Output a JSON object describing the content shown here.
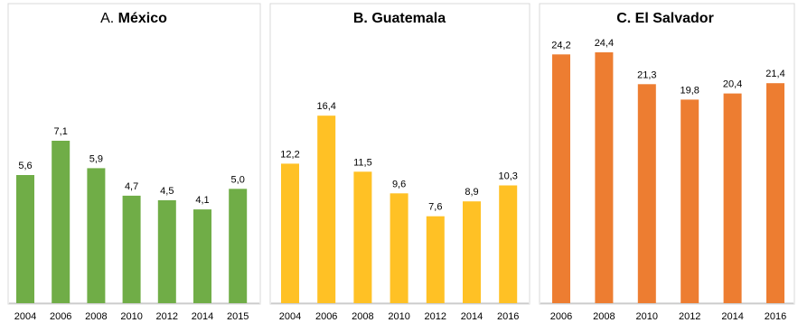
{
  "chart_data": [
    {
      "type": "bar",
      "title_prefix": "A.",
      "title": "México",
      "color": "#70AD47",
      "categories": [
        "2004",
        "2006",
        "2008",
        "2010",
        "2012",
        "2014",
        "2015"
      ],
      "values": [
        5.6,
        7.1,
        5.9,
        4.7,
        4.5,
        4.1,
        5.0
      ],
      "labels": [
        "5,6",
        "7,1",
        "5,9",
        "4,7",
        "4,5",
        "4,1",
        "5,0"
      ],
      "ylim": [
        0,
        8.6
      ],
      "grid": false
    },
    {
      "type": "bar",
      "title_prefix": "B.",
      "title": "Guatemala",
      "color": "#FFC125",
      "categories": [
        "2004",
        "2006",
        "2008",
        "2010",
        "2012",
        "2014",
        "2016"
      ],
      "values": [
        12.2,
        16.4,
        11.5,
        9.6,
        7.6,
        8.9,
        10.3
      ],
      "labels": [
        "12,2",
        "16,4",
        "11,5",
        "9,6",
        "7,6",
        "8,9",
        "10,3"
      ],
      "ylim": [
        0,
        20.2
      ],
      "grid": false
    },
    {
      "type": "bar",
      "title_prefix": "C.",
      "title": "El Salvador",
      "color": "#ED7D31",
      "categories": [
        "2006",
        "2008",
        "2010",
        "2012",
        "2014",
        "2016"
      ],
      "values": [
        24.2,
        24.4,
        21.3,
        19.8,
        20.4,
        21.4
      ],
      "labels": [
        "24,2",
        "24,4",
        "21,3",
        "19,8",
        "20,4",
        "21,4"
      ],
      "ylim": [
        0,
        24.4
      ],
      "grid": false
    }
  ]
}
